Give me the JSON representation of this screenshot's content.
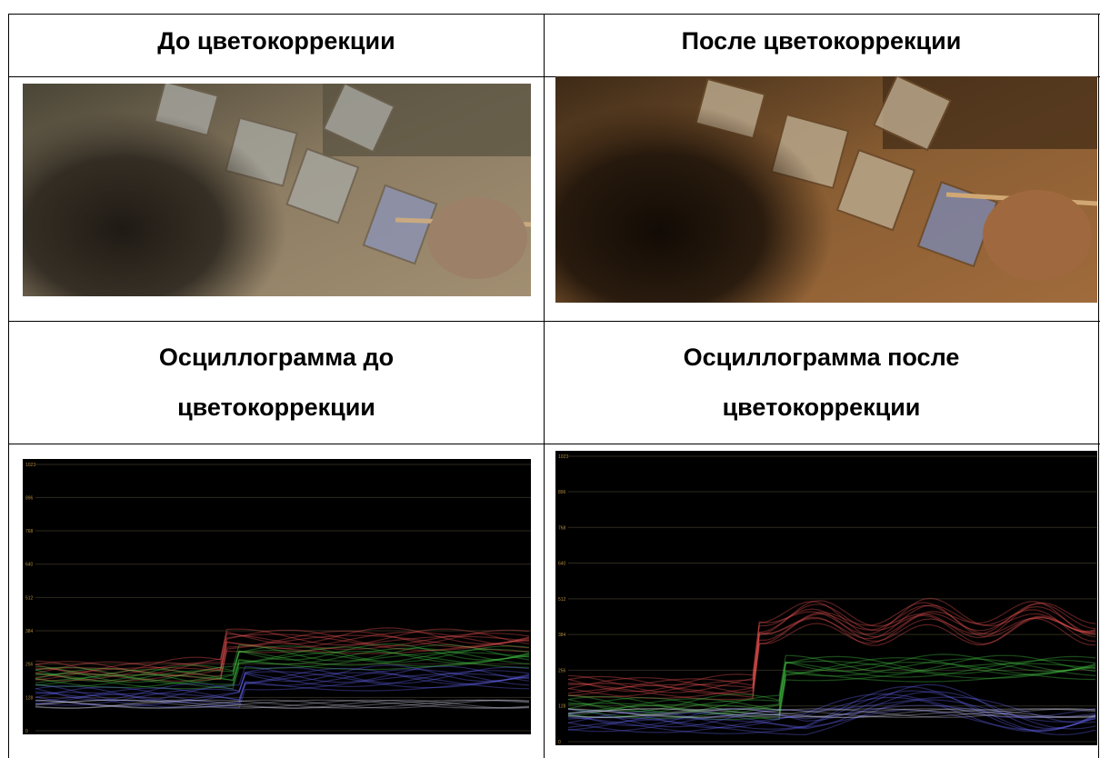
{
  "table": {
    "rows": [
      [
        "До цветокоррекции",
        "После цветокоррекции"
      ],
      [
        [
          "Осциллограмма до",
          "цветокоррекции"
        ],
        [
          "Осциллограмма после",
          "цветокоррекции"
        ]
      ]
    ]
  },
  "waveform_scale": [
    1023,
    896,
    768,
    640,
    512,
    384,
    256,
    128,
    0
  ]
}
